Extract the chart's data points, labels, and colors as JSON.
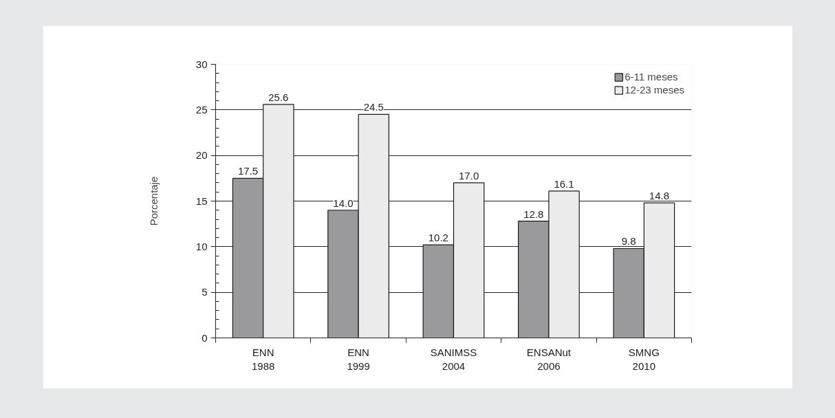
{
  "chart_data": {
    "type": "bar",
    "ylabel": "Porcentaje",
    "categories": [
      "ENN\n1988",
      "ENN\n1999",
      "SANIMSS\n2004",
      "ENSANut\n2006",
      "SMNG\n2010"
    ],
    "series": [
      {
        "name": "6-11 meses",
        "color": "#9a9a9c",
        "values": [
          17.5,
          14.0,
          10.2,
          12.8,
          9.8
        ],
        "value_labels": [
          "17.5",
          "14.0",
          "10.2",
          "12.8",
          "9.8"
        ]
      },
      {
        "name": "12-23 meses",
        "color": "#ececec",
        "values": [
          25.6,
          24.5,
          17.0,
          16.1,
          14.8
        ],
        "value_labels": [
          "25.6",
          "24.5",
          "17.0",
          "16.1",
          "14.8"
        ]
      }
    ],
    "ylim": [
      0,
      30
    ],
    "yticks": [
      0,
      5,
      10,
      15,
      20,
      25,
      30
    ],
    "grid": "y",
    "legend": "top right"
  }
}
